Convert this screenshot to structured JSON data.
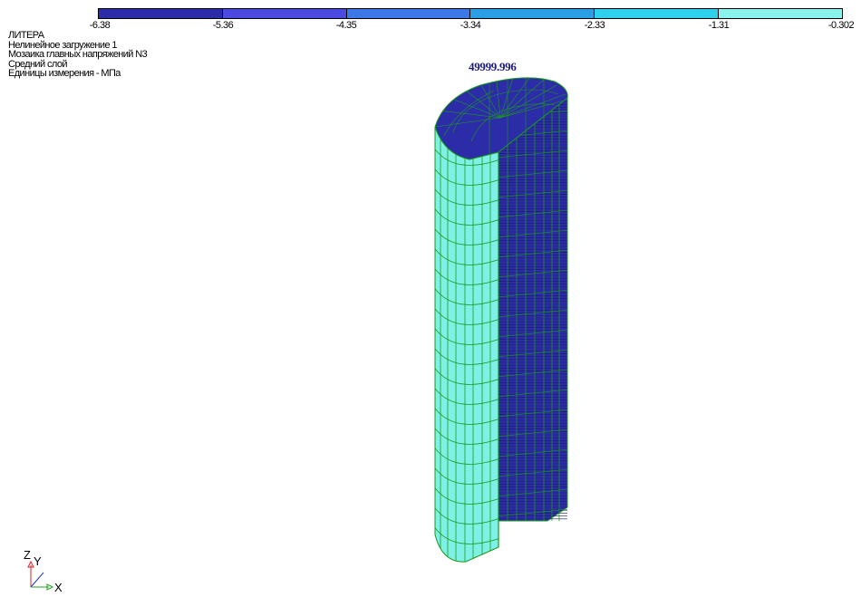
{
  "legend": {
    "colors": [
      "#2c2ca8",
      "#4a4ae0",
      "#3c78e6",
      "#2a9fe4",
      "#2fd0ec",
      "#8cf2ee"
    ],
    "labels": [
      "-6.38",
      "-5.36",
      "-4.35",
      "-3.34",
      "-2.33",
      "-1.31",
      "-0.302"
    ]
  },
  "info": {
    "project": "ЛИТЕРА",
    "load_case": "Нелинейное загружение  1",
    "result": "Мозаика главных напряжений N3",
    "layer": "Средний слой",
    "units": "Единицы измерения - МПа"
  },
  "model": {
    "max_label": "49999.996",
    "front_face_color": "#2c2ca8",
    "outer_face_color": "#7ff0e6",
    "mesh_color": "#1a9a1a"
  },
  "axes": {
    "z": "Z",
    "y": "Y",
    "x": "X"
  }
}
